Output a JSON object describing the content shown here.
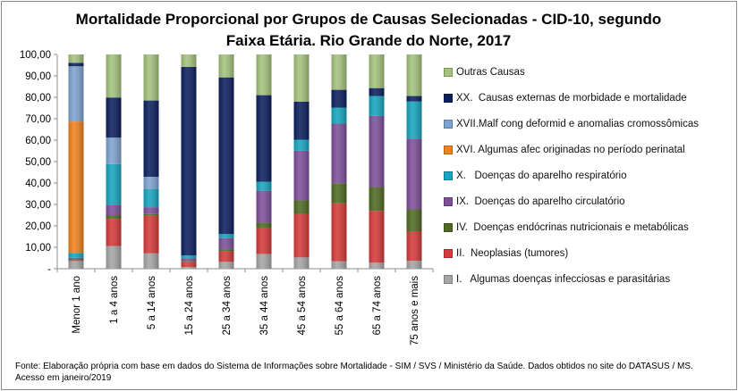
{
  "chart_data": {
    "type": "bar",
    "stacked": true,
    "title": "Mortalidade Proporcional por Grupos de Causas Selecionadas - CID-10, segundo Faixa Etária. Rio Grande do Norte, 2017",
    "title_lines": [
      "Mortalidade Proporcional por Grupos de Causas Selecionadas - CID-10, segundo",
      "Faixa Etária. Rio Grande do Norte, 2017"
    ],
    "xlabel": "",
    "ylabel": "",
    "ylim": [
      0,
      100
    ],
    "yticks": [
      "-",
      "10,00",
      "20,00",
      "30,00",
      "40,00",
      "50,00",
      "60,00",
      "70,00",
      "80,00",
      "90,00",
      "100,00"
    ],
    "grid": false,
    "legend_position": "right",
    "categories": [
      "Menor 1 ano",
      "1 a 4 anos",
      "5 a 14 anos",
      "15 a 24 anos",
      "25 a 34 anos",
      "35 a 44 anos",
      "45 a 54 anos",
      "55 a 64 anos",
      "65 a 74 anos",
      "75 anos e mais"
    ],
    "series": [
      {
        "name": "I.   Algumas doenças infecciosas e parasitárias",
        "color": "#a6a6a6",
        "values": [
          3.6,
          10.6,
          7.2,
          0.8,
          3.2,
          6.9,
          5.3,
          3.5,
          2.8,
          3.7
        ]
      },
      {
        "name": "II.  Neoplasias (tumores)",
        "color": "#d63a3a",
        "values": [
          0.3,
          12.7,
          17.5,
          2.4,
          4.8,
          11.9,
          20.3,
          27.0,
          24.2,
          13.8
        ]
      },
      {
        "name": "IV.  Doenças endócrinas nutricionais e metabólicas",
        "color": "#4f6b22",
        "values": [
          0.5,
          1.7,
          0.8,
          0.4,
          1.0,
          2.7,
          6.3,
          9.4,
          11.1,
          10.2
        ]
      },
      {
        "name": "IX.  Doenças do aparelho circulatório",
        "color": "#7e4f9a",
        "values": [
          0.7,
          4.9,
          3.2,
          1.3,
          5.3,
          14.9,
          23.2,
          27.8,
          33.2,
          33.0
        ]
      },
      {
        "name": "X.   Doenças do aparelho respiratório",
        "color": "#17a6bf",
        "values": [
          2.3,
          18.9,
          8.4,
          1.3,
          1.9,
          4.2,
          5.1,
          7.5,
          9.3,
          17.4
        ]
      },
      {
        "name": "XVI. Algumas afec originadas no período perinatal",
        "color": "#f0821e",
        "values": [
          61.3,
          0,
          0,
          0,
          0,
          0,
          0,
          0,
          0,
          0
        ]
      },
      {
        "name": "XVII.Malf cong deformid e anomalias cromossômicas",
        "color": "#7fa3d0",
        "values": [
          25.8,
          12.4,
          5.8,
          0,
          0,
          0,
          0,
          0,
          0,
          0
        ]
      },
      {
        "name": "XX.  Causas externas de morbidade e mortalidade",
        "color": "#0c1f5e",
        "values": [
          1.6,
          18.7,
          35.6,
          88.0,
          73.1,
          40.4,
          17.8,
          8.3,
          3.7,
          2.5
        ]
      },
      {
        "name": "Outras Causas",
        "color": "#a5c37d",
        "values": [
          3.9,
          20.1,
          21.5,
          5.8,
          10.7,
          19.0,
          22.0,
          16.5,
          15.7,
          19.4
        ]
      }
    ]
  },
  "source": {
    "line1": "Fonte: Elaboração própria com base em dados do  Sistema de Informações sobre Mortalidade - SIM / SVS / Ministério da Saúde. Dados obtidos no site do DATASUS / MS.",
    "line2": "Acesso em janeiro/2019"
  }
}
